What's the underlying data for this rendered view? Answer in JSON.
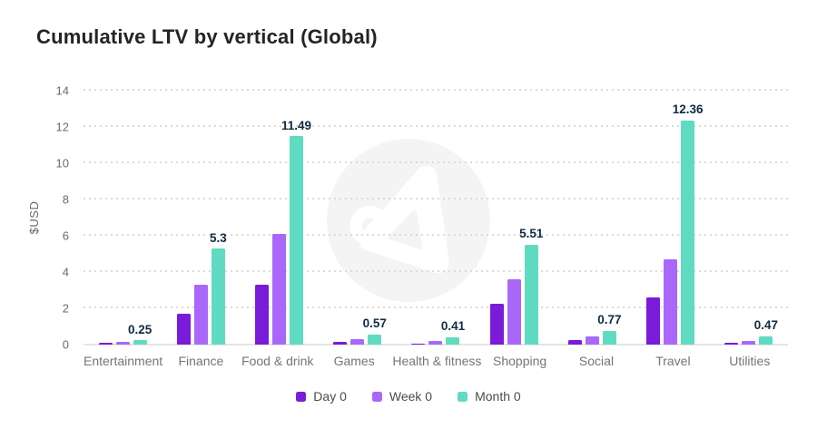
{
  "title": "Cumulative LTV by vertical (Global)",
  "colors": {
    "day0": "#7a1bd9",
    "week0": "#a968fa",
    "month0": "#5fdbc1",
    "data_label": "#102a43",
    "title_text": "#242424",
    "axis_text": "#6b6b6b",
    "x_label_text": "#757575",
    "grid": "#dadada",
    "baseline": "#e4e4e4",
    "watermark_bg": "#f4f4f4"
  },
  "watermark": {
    "icon": "adjust-logo-watermark"
  },
  "chart_data": {
    "type": "bar",
    "title": "Cumulative LTV by vertical (Global)",
    "xlabel": "",
    "ylabel": "$USD",
    "ylim": [
      0,
      14
    ],
    "yticks": [
      0,
      2,
      4,
      6,
      8,
      10,
      12,
      14
    ],
    "grid": "horizontal-dotted",
    "legend_position": "bottom-center",
    "categories": [
      "Entertainment",
      "Finance",
      "Food & drink",
      "Games",
      "Health & fitness",
      "Shopping",
      "Social",
      "Travel",
      "Utilities"
    ],
    "series": [
      {
        "name": "Day 0",
        "color": "#7a1bd9",
        "values": [
          0.08,
          1.7,
          3.3,
          0.14,
          0.07,
          2.25,
          0.25,
          2.6,
          0.1
        ]
      },
      {
        "name": "Week 0",
        "color": "#a968fa",
        "values": [
          0.16,
          3.3,
          6.1,
          0.3,
          0.2,
          3.6,
          0.45,
          4.7,
          0.22
        ]
      },
      {
        "name": "Month 0",
        "color": "#5fdbc1",
        "values": [
          0.25,
          5.3,
          11.49,
          0.57,
          0.41,
          5.51,
          0.77,
          12.36,
          0.47
        ],
        "data_labels": [
          "0.25",
          "5.3",
          "11.49",
          "0.57",
          "0.41",
          "5.51",
          "0.77",
          "12.36",
          "0.47"
        ]
      }
    ]
  }
}
